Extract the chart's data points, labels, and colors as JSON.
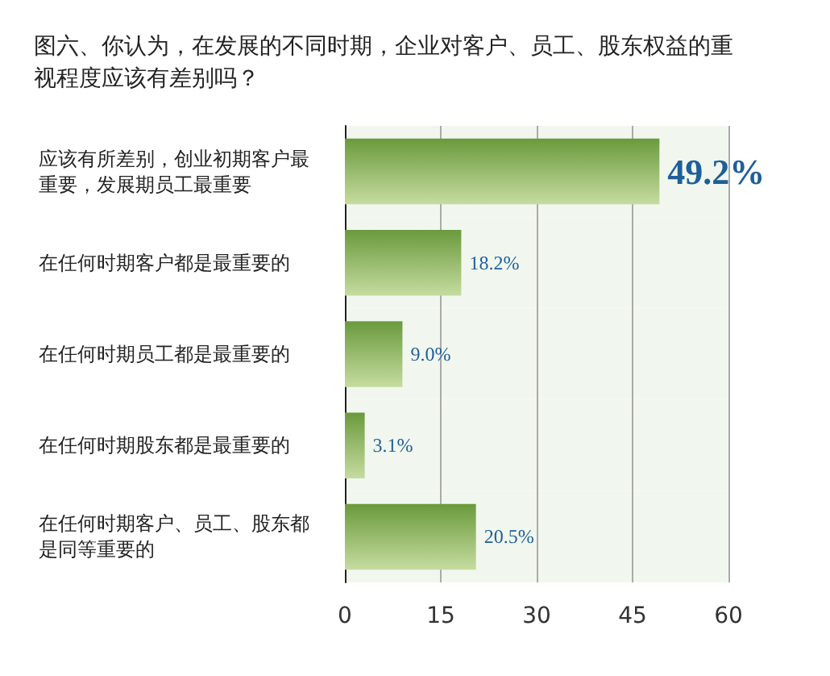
{
  "chart_data": {
    "type": "bar",
    "orientation": "horizontal",
    "title": "图六、你认为，在发展的不同时期，企业对客户、员工、股东权益的重视程度应该有差别吗？",
    "categories": [
      "应该有所差别，创业初期客户最重要，发展期员工最重要",
      "在任何时期客户都是最重要的",
      "在任何时期员工都是最重要的",
      "在任何时期股东都是最重要的",
      "在任何时期客户、员工、股东都是同等重要的"
    ],
    "values": [
      49.2,
      18.2,
      9.0,
      3.1,
      20.5
    ],
    "value_labels": [
      "49.2%",
      "18.2%",
      "9.0%",
      "3.1%",
      "20.5%"
    ],
    "color": "#6a9a3c",
    "xlim": [
      0,
      60
    ],
    "xticks": [
      0,
      15,
      30,
      45,
      60
    ],
    "grid": "x"
  }
}
